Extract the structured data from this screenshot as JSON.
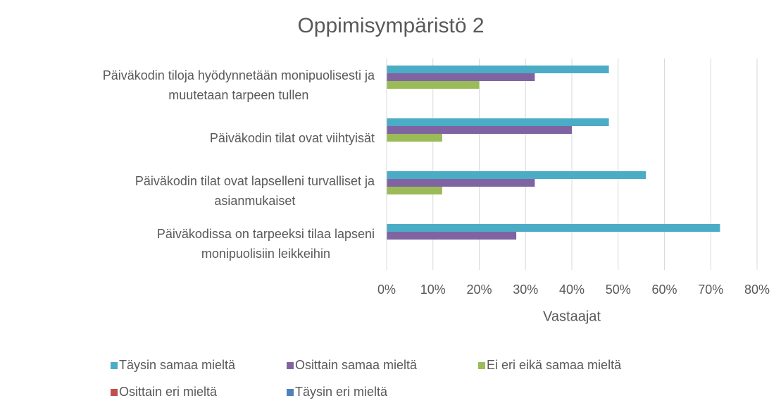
{
  "chart_data": {
    "type": "hbar",
    "title": "Oppimisympäristö 2",
    "x_label": "Vastaajat",
    "categories": [
      "Päiväkodin tiloja hyödynnetään monipuolisesti ja\nmuutetaan tarpeen tullen",
      "Päiväkodin tilat ovat viihtyisät",
      "Päiväkodin tilat ovat lapselleni turvalliset ja\nasianmukaiset",
      "Päiväkodissa on tarpeeksi tilaa lapseni\nmonipuolisiin leikkeihin"
    ],
    "series": [
      {
        "name": "Täysin samaa mieltä",
        "color": "#4bacc6",
        "values": [
          48,
          48,
          56,
          72
        ]
      },
      {
        "name": "Osittain samaa mieltä",
        "color": "#8064a2",
        "values": [
          32,
          40,
          32,
          28
        ]
      },
      {
        "name": "Ei eri eikä samaa mieltä",
        "color": "#9bbb59",
        "values": [
          20,
          12,
          12,
          0
        ]
      },
      {
        "name": "Osittain eri mieltä",
        "color": "#c0504d",
        "values": [
          0,
          0,
          0,
          0
        ]
      },
      {
        "name": "Täysin eri mieltä",
        "color": "#4f81bd",
        "values": [
          0,
          0,
          0,
          0
        ]
      }
    ],
    "xlim": [
      0,
      80
    ],
    "xticks": [
      {
        "value": 0,
        "label": "0%"
      },
      {
        "value": 10,
        "label": "10%"
      },
      {
        "value": 20,
        "label": "20%"
      },
      {
        "value": 30,
        "label": "30%"
      },
      {
        "value": 40,
        "label": "40%"
      },
      {
        "value": 50,
        "label": "50%"
      },
      {
        "value": 60,
        "label": "60%"
      },
      {
        "value": 70,
        "label": "70%"
      },
      {
        "value": 80,
        "label": "80%"
      }
    ],
    "grid": true,
    "legend": "bottom"
  }
}
